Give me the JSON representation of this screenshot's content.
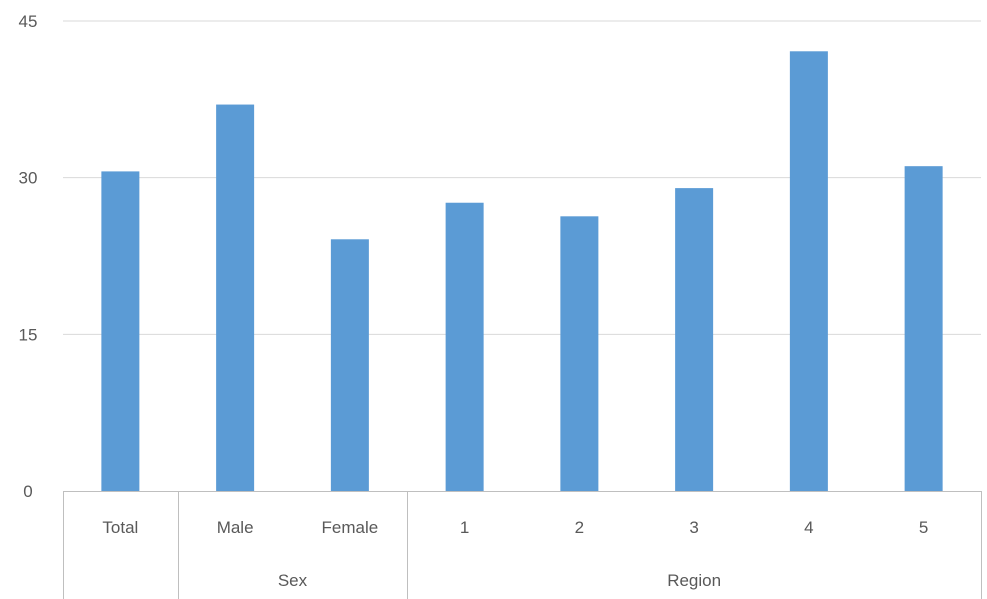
{
  "chart_data": {
    "type": "bar",
    "categories": [
      "Total",
      "Male",
      "Female",
      "1",
      "2",
      "3",
      "4",
      "5"
    ],
    "groups": [
      {
        "label": "",
        "categories": [
          "Total"
        ]
      },
      {
        "label": "Sex",
        "categories": [
          "Male",
          "Female"
        ]
      },
      {
        "label": "Region",
        "categories": [
          "1",
          "2",
          "3",
          "4",
          "5"
        ]
      }
    ],
    "series": [
      {
        "values": [
          30.6,
          37.0,
          24.1,
          27.6,
          26.3,
          29.0,
          42.1,
          31.1
        ]
      }
    ],
    "ylim": [
      0,
      45
    ],
    "yticks": [
      0,
      15,
      30,
      45
    ],
    "title": "",
    "xlabel": "",
    "ylabel": "",
    "grid": true,
    "bar_color": "#5b9bd5",
    "grid_color": "#d9d9d9",
    "axis_color": "#bfbfbf",
    "text_color": "#595959"
  }
}
